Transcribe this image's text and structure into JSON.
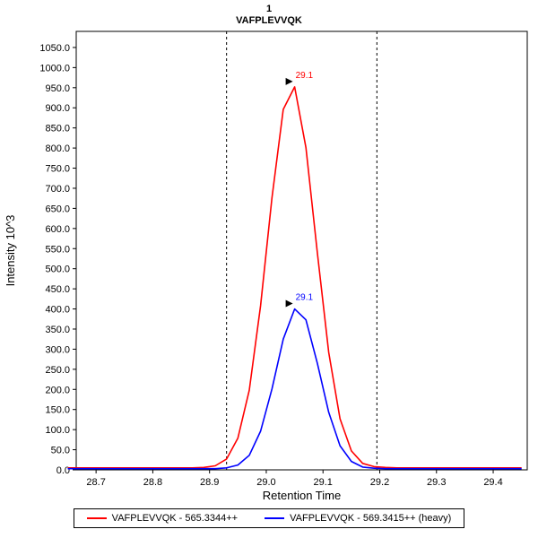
{
  "chart_data": {
    "type": "line",
    "title": "1",
    "subtitle": "VAFPLEVVQK",
    "xlabel": "Retention Time",
    "ylabel": "Intensity 10^3",
    "xlim": [
      28.665,
      29.46
    ],
    "ylim": [
      0,
      1090
    ],
    "grid": false,
    "legend_position": "bottom",
    "x_ticks": [
      28.7,
      28.8,
      28.9,
      29.0,
      29.1,
      29.2,
      29.3,
      29.4
    ],
    "y_ticks": [
      0,
      50,
      100,
      150,
      200,
      250,
      300,
      350,
      400,
      450,
      500,
      550,
      600,
      650,
      700,
      750,
      800,
      850,
      900,
      950,
      1000,
      1050
    ],
    "integration_boundaries": [
      28.93,
      29.195
    ],
    "x": [
      28.65,
      28.67,
      28.69,
      28.71,
      28.73,
      28.75,
      28.77,
      28.79,
      28.81,
      28.83,
      28.85,
      28.87,
      28.89,
      28.91,
      28.93,
      28.95,
      28.97,
      28.99,
      29.01,
      29.03,
      29.05,
      29.07,
      29.09,
      29.11,
      29.13,
      29.15,
      29.17,
      29.19,
      29.21,
      29.23,
      29.25,
      29.27,
      29.29,
      29.31,
      29.33,
      29.35,
      29.37,
      29.39,
      29.41,
      29.43,
      29.45
    ],
    "series": [
      {
        "name": "VAFPLEVVQK - 565.3344++",
        "color": "#ff0000",
        "peak_annotation": {
          "x": 29.05,
          "y": 952,
          "label": "29.1"
        },
        "values": [
          5,
          5,
          5,
          5,
          5,
          5,
          5,
          5,
          5,
          5,
          5,
          5,
          6,
          10,
          27,
          79,
          198,
          408,
          676,
          896,
          952,
          801,
          540,
          292,
          127,
          47,
          16,
          8,
          6,
          5,
          5,
          5,
          5,
          5,
          5,
          5,
          5,
          5,
          5,
          5,
          5
        ]
      },
      {
        "name": "VAFPLEVVQK - 569.3415++ (heavy)",
        "color": "#0000ff",
        "peak_annotation": {
          "x": 29.05,
          "y": 400,
          "label": "29.1"
        },
        "values": [
          3,
          3,
          3,
          3,
          3,
          3,
          3,
          3,
          3,
          3,
          3,
          3,
          3,
          3,
          5,
          12,
          36,
          96,
          201,
          325,
          400,
          373,
          265,
          143,
          60,
          21,
          7,
          4,
          3,
          3,
          3,
          3,
          3,
          3,
          3,
          3,
          3,
          3,
          3,
          3,
          3
        ]
      }
    ]
  }
}
